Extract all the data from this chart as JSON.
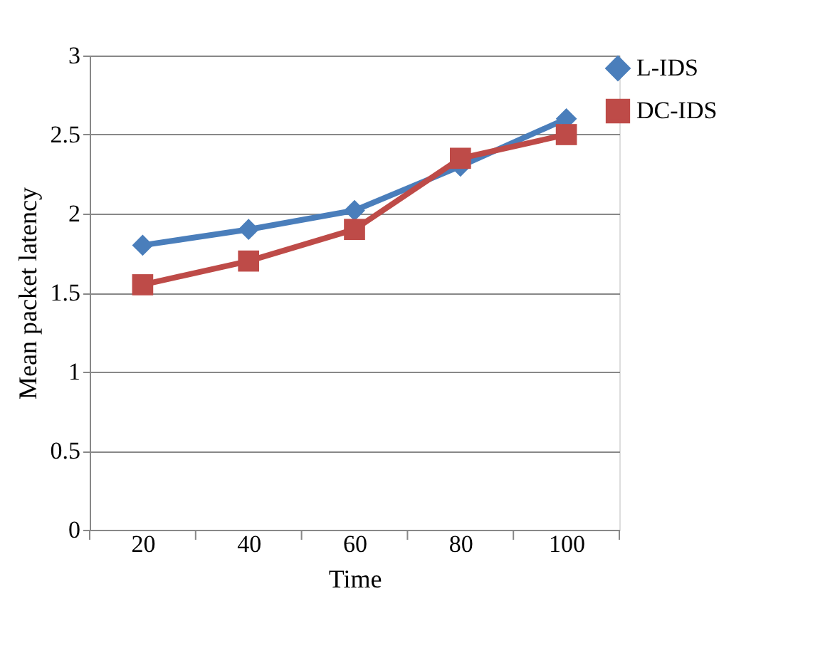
{
  "chart_data": {
    "type": "line",
    "xlabel": "Time",
    "ylabel": "Mean packet latency",
    "categories": [
      "20",
      "40",
      "60",
      "80",
      "100"
    ],
    "series": [
      {
        "name": "L-IDS",
        "color": "#4a7ebb",
        "marker": "diamond",
        "values": [
          1.8,
          1.9,
          2.02,
          2.3,
          2.6
        ]
      },
      {
        "name": "DC-IDS",
        "color": "#be4b48",
        "marker": "square",
        "values": [
          1.55,
          1.7,
          1.9,
          2.35,
          2.5
        ]
      }
    ],
    "ylim": [
      0,
      3
    ],
    "yticks": [
      {
        "value": 0,
        "label": "0"
      },
      0.5,
      {
        "value": 1,
        "label": "1"
      },
      1.5,
      {
        "value": 2,
        "label": "2"
      },
      2.5,
      {
        "value": 3,
        "label": "3"
      }
    ],
    "grid": "y",
    "legend": "right"
  }
}
